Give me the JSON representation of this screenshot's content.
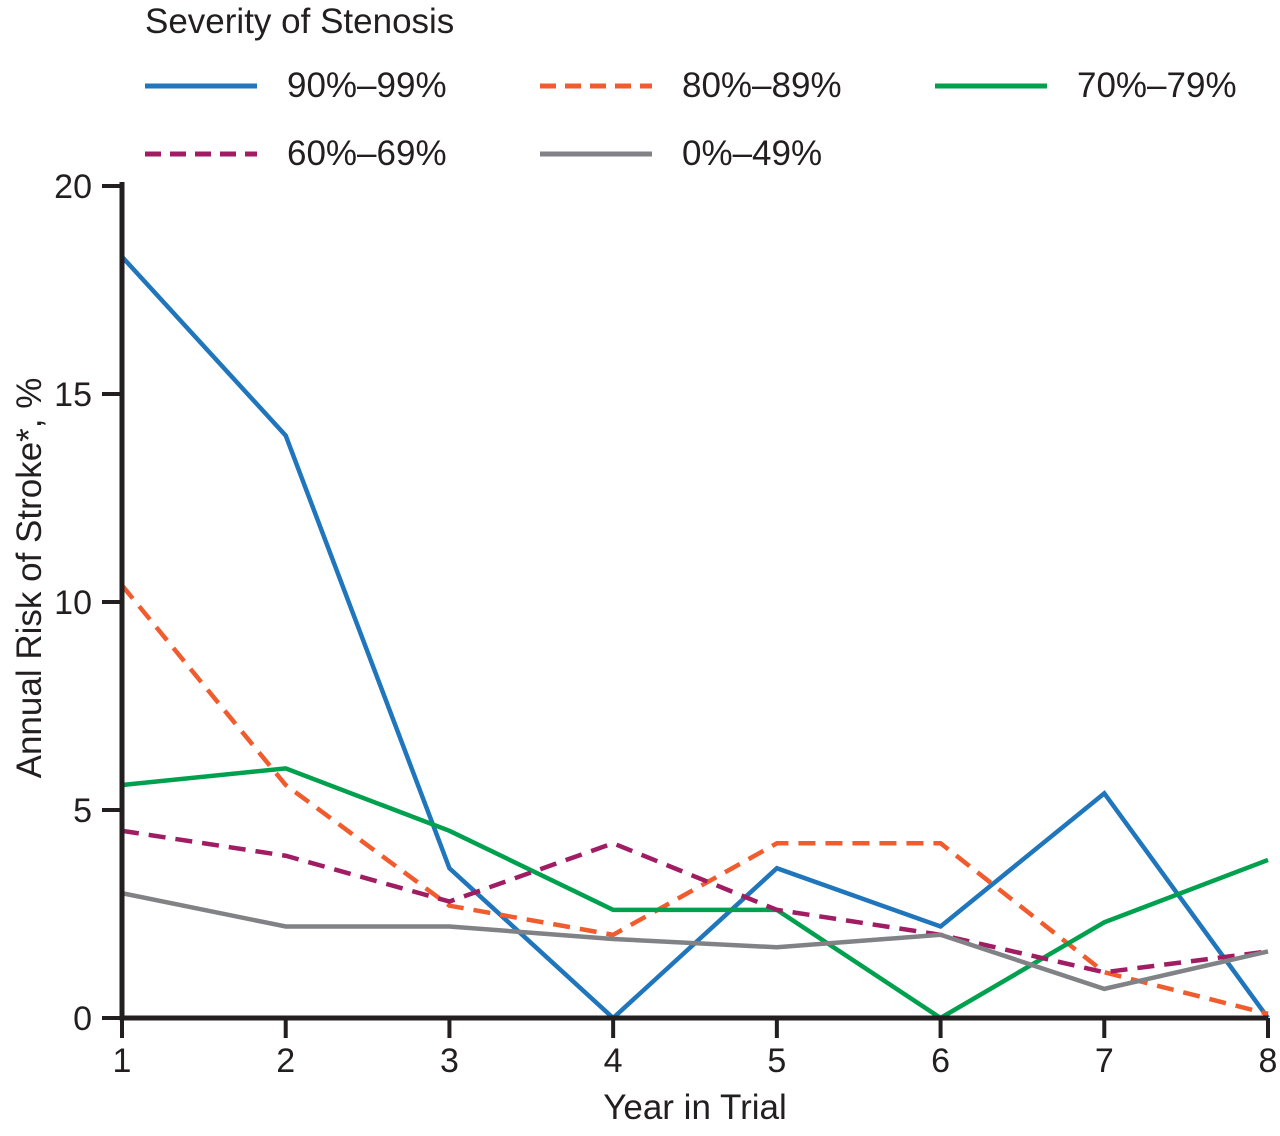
{
  "chart_data": {
    "type": "line",
    "legend_title": "Severity of Stenosis",
    "xlabel": "Year in Trial",
    "ylabel": "Annual Risk of Stroke*, %",
    "x": [
      1,
      2,
      3,
      4,
      5,
      6,
      7,
      8
    ],
    "xticks": [
      1,
      2,
      3,
      4,
      5,
      6,
      7,
      8
    ],
    "yticks": [
      0,
      5,
      10,
      15,
      20
    ],
    "xlim": [
      1,
      8
    ],
    "ylim": [
      0,
      20
    ],
    "grid": false,
    "legend_position": "top-left",
    "background_color": "#ffffff",
    "axis_color": "#231f20",
    "text_color": "#231f20",
    "series": [
      {
        "key": "90-99",
        "name": "90%–99%",
        "color": "#1f76bc",
        "dash": "solid",
        "values": [
          18.3,
          14.0,
          3.6,
          0.0,
          3.6,
          2.2,
          5.4,
          0.0
        ]
      },
      {
        "key": "80-89",
        "name": "80%–89%",
        "color": "#f15c2e",
        "dash": "dashed",
        "values": [
          10.4,
          5.6,
          2.7,
          2.0,
          4.2,
          4.2,
          1.1,
          0.1
        ]
      },
      {
        "key": "70-79",
        "name": "70%–79%",
        "color": "#00a14e",
        "dash": "solid",
        "values": [
          5.6,
          6.0,
          4.5,
          2.6,
          2.6,
          0.0,
          2.3,
          3.8
        ]
      },
      {
        "key": "60-69",
        "name": "60%–69%",
        "color": "#a01d63",
        "dash": "dashed",
        "values": [
          4.5,
          3.9,
          2.8,
          4.2,
          2.6,
          2.0,
          1.1,
          1.6
        ]
      },
      {
        "key": "0-49",
        "name": "0%–49%",
        "color": "#808285",
        "dash": "solid",
        "values": [
          3.0,
          2.2,
          2.2,
          1.9,
          1.7,
          2.0,
          0.7,
          1.6
        ]
      }
    ]
  }
}
